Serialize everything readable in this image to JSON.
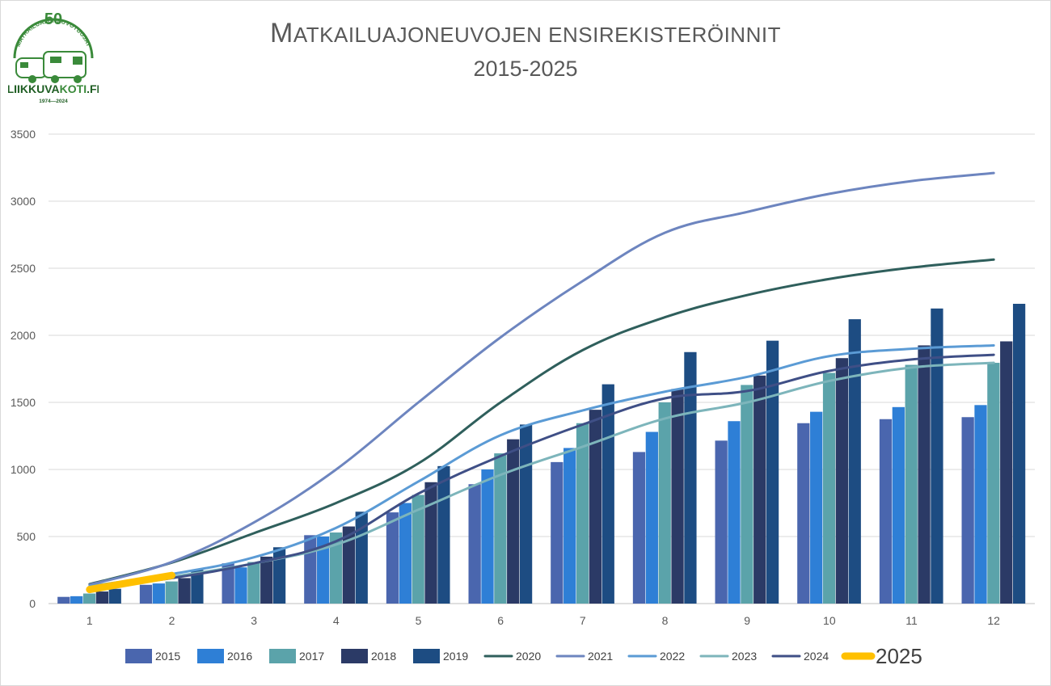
{
  "header": {
    "title_cap": "M",
    "title_rest": "ATKAILUAJONEUVOJEN ENSIREKISTERÖINNIT",
    "subtitle": "2015-2025"
  },
  "logo": {
    "number": "50",
    "arc_text": "MATKAILUAJONEUVOTUOJAT",
    "brand_a": "LIIKKUVA",
    "brand_b": "KOTI",
    "brand_c": ".FI",
    "years": "1974—2024",
    "colors": {
      "green": "#3a8a3a",
      "dark": "#1f5e23"
    }
  },
  "chart_data": {
    "type": "bar",
    "categories": [
      "1",
      "2",
      "3",
      "4",
      "5",
      "6",
      "7",
      "8",
      "9",
      "10",
      "11",
      "12"
    ],
    "ylim": [
      0,
      3500
    ],
    "yticks": [
      0,
      500,
      1000,
      1500,
      2000,
      2500,
      3000,
      3500
    ],
    "grid": true,
    "legend_position": "bottom",
    "bar_series": [
      {
        "name": "2015",
        "color": "#4a66ae",
        "values": [
          50,
          140,
          300,
          510,
          680,
          890,
          1055,
          1130,
          1215,
          1345,
          1375,
          1390
        ]
      },
      {
        "name": "2016",
        "color": "#2e7fd6",
        "values": [
          55,
          150,
          270,
          500,
          750,
          1000,
          1160,
          1280,
          1360,
          1430,
          1465,
          1480
        ]
      },
      {
        "name": "2017",
        "color": "#5ba3aa",
        "values": [
          75,
          165,
          310,
          530,
          810,
          1120,
          1345,
          1500,
          1630,
          1720,
          1780,
          1795
        ]
      },
      {
        "name": "2018",
        "color": "#2b3a66",
        "values": [
          90,
          190,
          350,
          575,
          905,
          1225,
          1445,
          1600,
          1700,
          1830,
          1925,
          1955
        ]
      },
      {
        "name": "2019",
        "color": "#1d4c82",
        "values": [
          110,
          250,
          420,
          685,
          1025,
          1335,
          1635,
          1875,
          1960,
          2120,
          2200,
          2235
        ]
      }
    ],
    "line_series": [
      {
        "name": "2020",
        "color": "#2f5f5c",
        "width": 3,
        "values": [
          145,
          305,
          525,
          750,
          1045,
          1500,
          1890,
          2135,
          2300,
          2420,
          2505,
          2565
        ]
      },
      {
        "name": "2021",
        "color": "#6d85bf",
        "width": 3,
        "values": [
          140,
          310,
          605,
          1000,
          1500,
          1985,
          2405,
          2765,
          2920,
          3055,
          3150,
          3210
        ]
      },
      {
        "name": "2022",
        "color": "#5b9bd5",
        "width": 3,
        "values": [
          130,
          220,
          345,
          565,
          910,
          1255,
          1440,
          1580,
          1690,
          1845,
          1900,
          1925
        ]
      },
      {
        "name": "2023",
        "color": "#7db5bb",
        "width": 3,
        "values": [
          115,
          200,
          300,
          440,
          700,
          960,
          1170,
          1380,
          1500,
          1660,
          1760,
          1795
        ]
      },
      {
        "name": "2024",
        "color": "#3f4f86",
        "width": 3,
        "values": [
          115,
          190,
          300,
          465,
          820,
          1100,
          1335,
          1530,
          1585,
          1735,
          1820,
          1855
        ]
      },
      {
        "name": "2025",
        "color": "#ffc000",
        "width": 9,
        "values": [
          105,
          210
        ]
      }
    ]
  }
}
